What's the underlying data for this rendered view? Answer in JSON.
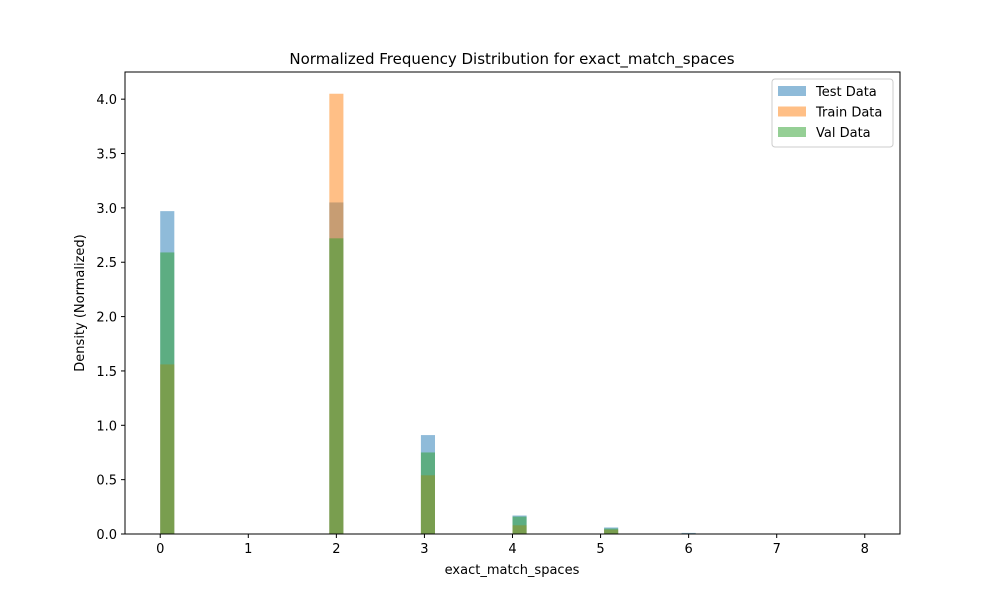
{
  "chart_data": {
    "type": "bar",
    "title": "Normalized Frequency Distribution for exact_match_spaces",
    "xlabel": "exact_match_spaces",
    "ylabel": "Density (Normalized)",
    "xlim": [
      -0.4,
      8.4
    ],
    "ylim": [
      0,
      4.25
    ],
    "xticks": [
      "0",
      "1",
      "2",
      "3",
      "4",
      "5",
      "6",
      "7",
      "8"
    ],
    "yticks": [
      "0.0",
      "0.5",
      "1.0",
      "1.5",
      "2.0",
      "2.5",
      "3.0",
      "3.5",
      "4.0"
    ],
    "legend_position": "top-right",
    "series": [
      {
        "name": "Test Data",
        "color": "#1f77b4",
        "bins": [
          {
            "x0": 0.0,
            "x1": 0.16,
            "value": 2.97
          },
          {
            "x0": 1.92,
            "x1": 2.08,
            "value": 3.05
          },
          {
            "x0": 2.96,
            "x1": 3.12,
            "value": 0.91
          },
          {
            "x0": 4.0,
            "x1": 4.16,
            "value": 0.17
          },
          {
            "x0": 5.04,
            "x1": 5.2,
            "value": 0.06
          },
          {
            "x0": 5.92,
            "x1": 6.08,
            "value": 0.01
          }
        ]
      },
      {
        "name": "Train Data",
        "color": "#ff7f0e",
        "bins": [
          {
            "x0": 0.0,
            "x1": 0.16,
            "value": 1.56
          },
          {
            "x0": 1.92,
            "x1": 2.08,
            "value": 4.05
          },
          {
            "x0": 2.96,
            "x1": 3.12,
            "value": 0.54
          },
          {
            "x0": 4.0,
            "x1": 4.16,
            "value": 0.08
          },
          {
            "x0": 5.04,
            "x1": 5.2,
            "value": 0.04
          },
          {
            "x0": 5.92,
            "x1": 6.08,
            "value": 0.005
          }
        ]
      },
      {
        "name": "Val Data",
        "color": "#2ca02c",
        "bins": [
          {
            "x0": 0.0,
            "x1": 0.16,
            "value": 2.59
          },
          {
            "x0": 1.92,
            "x1": 2.08,
            "value": 2.72
          },
          {
            "x0": 2.96,
            "x1": 3.12,
            "value": 0.75
          },
          {
            "x0": 4.0,
            "x1": 4.16,
            "value": 0.16
          },
          {
            "x0": 5.04,
            "x1": 5.2,
            "value": 0.05
          },
          {
            "x0": 5.92,
            "x1": 6.08,
            "value": 0.005
          }
        ]
      }
    ]
  }
}
